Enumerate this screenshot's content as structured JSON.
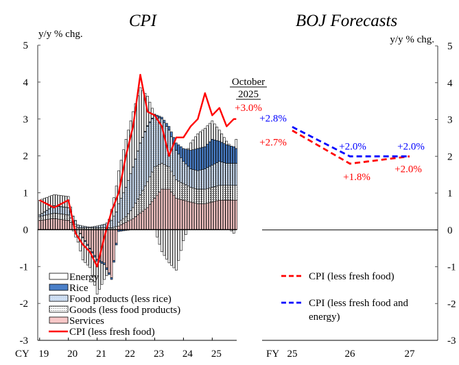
{
  "chart_data": [
    {
      "type": "bar",
      "stacked": true,
      "title": "CPI",
      "ylabel": "y/y % chg.",
      "ylim": [
        -3,
        5
      ],
      "yticks": [
        5,
        4,
        3,
        2,
        1,
        0,
        -1,
        -2,
        -3
      ],
      "xlabel_prefix": "CY",
      "xticks": [
        "19",
        "20",
        "21",
        "22",
        "23",
        "24",
        "25"
      ],
      "x_start": "2019-01",
      "x_end": "2025-10",
      "annotation": {
        "line1": "October",
        "line2": "2025",
        "value": "+3.0%"
      },
      "legend": [
        {
          "key": "energy",
          "label": "Energy",
          "fill": "#ffffff",
          "pattern": "none"
        },
        {
          "key": "rice",
          "label": "Rice",
          "fill": "#4a7fc8",
          "pattern": "none"
        },
        {
          "key": "food",
          "label": "Food products (less rice)",
          "fill": "#c6d9f0",
          "pattern": "dots-light"
        },
        {
          "key": "goods",
          "label": "Goods (less food products)",
          "fill": "#ffffff",
          "pattern": "dots-dark"
        },
        {
          "key": "services",
          "label": "Services",
          "fill": "#f8c8c8",
          "pattern": "none"
        },
        {
          "key": "cpi",
          "label": "CPI (less fresh food)",
          "color": "#ff0000",
          "kind": "line"
        }
      ],
      "legend_position": "bottom-left",
      "series_keyframes": {
        "note": "approximate monthly contributions (percentage points), interpolated between keyframe months (index 0 = Jan 2019)",
        "month_index": [
          0,
          6,
          12,
          15,
          18,
          21,
          24,
          27,
          30,
          33,
          36,
          39,
          42,
          45,
          48,
          51,
          54,
          57,
          60,
          63,
          66,
          69,
          72,
          75,
          78,
          81,
          82
        ],
        "services": [
          0.25,
          0.3,
          0.25,
          0.1,
          -0.2,
          -0.5,
          -0.8,
          -0.9,
          -1.3,
          0.1,
          0.2,
          0.3,
          0.45,
          0.6,
          0.85,
          1.1,
          1.1,
          0.85,
          0.8,
          0.75,
          0.7,
          0.7,
          0.75,
          0.8,
          0.8,
          0.8,
          0.8
        ],
        "goods": [
          0.1,
          0.15,
          0.15,
          0.05,
          0.05,
          0.05,
          0.05,
          0.05,
          0.05,
          0.1,
          0.15,
          0.3,
          0.5,
          0.7,
          0.85,
          0.7,
          0.6,
          0.5,
          0.45,
          0.4,
          0.4,
          0.4,
          0.4,
          0.4,
          0.4,
          0.4,
          0.4
        ],
        "food": [
          0.05,
          0.2,
          0.2,
          0.1,
          0.05,
          0.02,
          0.05,
          0.1,
          0.2,
          0.5,
          0.8,
          1.1,
          1.4,
          1.5,
          1.4,
          1.2,
          1.0,
          0.8,
          0.6,
          0.5,
          0.5,
          0.55,
          0.6,
          0.65,
          0.6,
          0.6,
          0.6
        ],
        "rice": [
          0.0,
          0.0,
          0.0,
          0.0,
          -0.02,
          -0.03,
          -0.05,
          -0.05,
          -0.05,
          -0.05,
          -0.02,
          0.0,
          0.0,
          0.02,
          0.03,
          0.05,
          0.1,
          0.2,
          0.35,
          0.5,
          0.6,
          0.6,
          0.7,
          0.55,
          0.5,
          0.45,
          0.4
        ],
        "energy": [
          0.4,
          0.3,
          0.3,
          -0.2,
          -0.6,
          -0.5,
          -0.9,
          -0.4,
          0.3,
          0.9,
          1.3,
          1.5,
          1.5,
          0.8,
          0.0,
          -0.6,
          -0.9,
          -1.1,
          -0.3,
          0.2,
          0.4,
          0.5,
          0.5,
          0.3,
          0.1,
          -0.1,
          0.25
        ],
        "cpi": [
          0.8,
          0.6,
          0.8,
          -0.1,
          -0.4,
          -0.6,
          -1.0,
          -0.2,
          0.5,
          1.0,
          2.0,
          2.8,
          4.2,
          3.2,
          3.1,
          2.8,
          2.0,
          2.5,
          2.5,
          2.8,
          3.0,
          3.7,
          3.1,
          3.3,
          2.8,
          3.0,
          3.0
        ]
      }
    },
    {
      "type": "line",
      "title": "BOJ Forecasts",
      "ylabel": "y/y % chg.",
      "ylim": [
        -3,
        5
      ],
      "yticks": [
        5,
        4,
        3,
        2,
        1,
        0,
        -1,
        -2,
        -3
      ],
      "xlabel_prefix": "FY",
      "categories": [
        "25",
        "26",
        "27"
      ],
      "series": [
        {
          "name": "CPI (less fresh food)",
          "color": "#ff0000",
          "dashed": true,
          "values": [
            2.7,
            1.8,
            2.0
          ],
          "labels": [
            "+2.7%",
            "+1.8%",
            "+2.0%"
          ]
        },
        {
          "name": "CPI (less fresh food and energy)",
          "color": "#0000ff",
          "dashed": true,
          "values": [
            2.8,
            2.0,
            2.0
          ],
          "labels": [
            "+2.8%",
            "+2.0%",
            "+2.0%"
          ]
        }
      ],
      "legend_position": "bottom-left"
    }
  ]
}
